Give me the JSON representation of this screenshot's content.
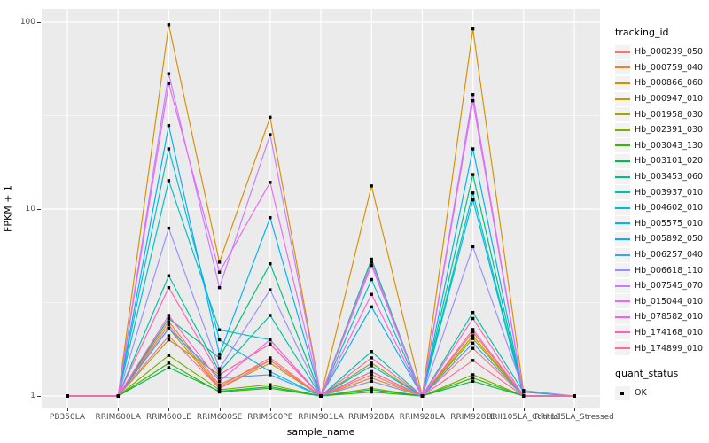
{
  "chart_data": {
    "type": "line",
    "title": "",
    "xlabel": "sample_name",
    "ylabel": "FPKM + 1",
    "yscale": "log10",
    "ylim": [
      0.89,
      118
    ],
    "y_ticks": [
      {
        "label": "100",
        "value": 100
      },
      {
        "label": "10",
        "value": 10
      },
      {
        "label": "1",
        "value": 1
      }
    ],
    "y_minor_ticks": [
      3.1623,
      31.623
    ],
    "grid": "white-on-gray",
    "legend_title": "tracking_id",
    "legend_position": "right",
    "quant_status": {
      "title": "quant_status",
      "label": "OK",
      "marker": "black-square"
    },
    "panel_bg": "#EBEBEB",
    "categories": [
      "PB350LA",
      "RRIM600LA",
      "RRIM600LE",
      "RRIM600SE",
      "RRIM600PE",
      "RRIM901LA",
      "RRIM928BA",
      "RRIM928LA",
      "RRIM928LE",
      "RRII105LA_Control",
      "RRII105LA_Stressed"
    ],
    "series": [
      {
        "name": "Hb_000239_050",
        "color": "#F8766D",
        "values": [
          1,
          1,
          2.4,
          1.12,
          1.6,
          1,
          1.3,
          1,
          1.8,
          1,
          1
        ]
      },
      {
        "name": "Hb_000759_040",
        "color": "#EA8331",
        "values": [
          1,
          1,
          2.5,
          1.15,
          1.55,
          1,
          1.25,
          1,
          2.2,
          1,
          1
        ]
      },
      {
        "name": "Hb_000866_060",
        "color": "#D89000",
        "values": [
          1,
          1,
          97,
          5.2,
          31,
          1,
          13.3,
          1,
          92,
          1.05,
          1
        ]
      },
      {
        "name": "Hb_000947_010",
        "color": "#C09B00",
        "values": [
          1,
          1,
          2.3,
          1.1,
          1.5,
          1,
          1.2,
          1,
          2.1,
          1,
          1
        ]
      },
      {
        "name": "Hb_001958_030",
        "color": "#A3A500",
        "values": [
          1,
          1,
          2.0,
          1.3,
          1.9,
          1,
          1.5,
          1,
          2.03,
          1,
          1
        ]
      },
      {
        "name": "Hb_002391_030",
        "color": "#7CAE00",
        "values": [
          1,
          1,
          1.65,
          1.08,
          1.15,
          1,
          1.1,
          1,
          1.3,
          1,
          1
        ]
      },
      {
        "name": "Hb_003043_130",
        "color": "#39B600",
        "values": [
          1,
          1,
          1.5,
          1.05,
          1.1,
          1,
          1.05,
          1,
          1.25,
          1,
          1
        ]
      },
      {
        "name": "Hb_003101_020",
        "color": "#00BB4E",
        "values": [
          1,
          1,
          1.42,
          1.06,
          1.12,
          1,
          1.08,
          1,
          1.2,
          1,
          1
        ]
      },
      {
        "name": "Hb_003453_060",
        "color": "#00BF7D",
        "values": [
          1,
          1,
          2.6,
          1.6,
          5.1,
          1,
          5.4,
          1,
          15.3,
          1,
          1
        ]
      },
      {
        "name": "Hb_003937_010",
        "color": "#00C1A3",
        "values": [
          1,
          1,
          4.4,
          1.35,
          2.7,
          1,
          1.73,
          1,
          2.8,
          1.05,
          1
        ]
      },
      {
        "name": "Hb_004602_010",
        "color": "#00BFC4",
        "values": [
          1,
          1,
          14.2,
          2.26,
          2.0,
          1,
          4.2,
          1,
          12.2,
          1,
          1
        ]
      },
      {
        "name": "Hb_005575_010",
        "color": "#00BAE0",
        "values": [
          1,
          1,
          21,
          2.0,
          1.35,
          1,
          1.45,
          1,
          11.2,
          1,
          1
        ]
      },
      {
        "name": "Hb_005892_050",
        "color": "#00B0F6",
        "values": [
          1,
          1,
          28,
          1.67,
          9,
          1,
          3.0,
          1,
          21,
          1,
          1
        ]
      },
      {
        "name": "Hb_006257_040",
        "color": "#35A2FF",
        "values": [
          1,
          1,
          2.3,
          1.25,
          1.3,
          1,
          1.35,
          1,
          1.92,
          1,
          1
        ]
      },
      {
        "name": "Hb_006618_110",
        "color": "#9590FF",
        "values": [
          1,
          1,
          7.9,
          1.4,
          3.7,
          1,
          1.2,
          1,
          6.3,
          1.07,
          1
        ]
      },
      {
        "name": "Hb_007545_070",
        "color": "#C77CFF",
        "values": [
          1,
          1,
          53,
          3.8,
          25,
          1,
          5.2,
          1,
          41,
          1,
          1
        ]
      },
      {
        "name": "Hb_015044_010",
        "color": "#E76BF3",
        "values": [
          1,
          1,
          47,
          4.6,
          13.9,
          1,
          5.0,
          1,
          38,
          1,
          1
        ]
      },
      {
        "name": "Hb_078582_010",
        "color": "#FA62DB",
        "values": [
          1,
          1,
          2.7,
          1.2,
          2.0,
          1,
          3.5,
          1,
          2.27,
          1,
          1
        ]
      },
      {
        "name": "Hb_174168_010",
        "color": "#FF62BC",
        "values": [
          1,
          1,
          3.8,
          1.3,
          1.9,
          1,
          1.6,
          1,
          2.6,
          1,
          1
        ]
      },
      {
        "name": "Hb_174899_010",
        "color": "#FF6A98",
        "values": [
          1,
          1,
          2.1,
          1.1,
          1.55,
          1,
          1.35,
          1,
          1.55,
          1,
          1
        ]
      }
    ]
  }
}
